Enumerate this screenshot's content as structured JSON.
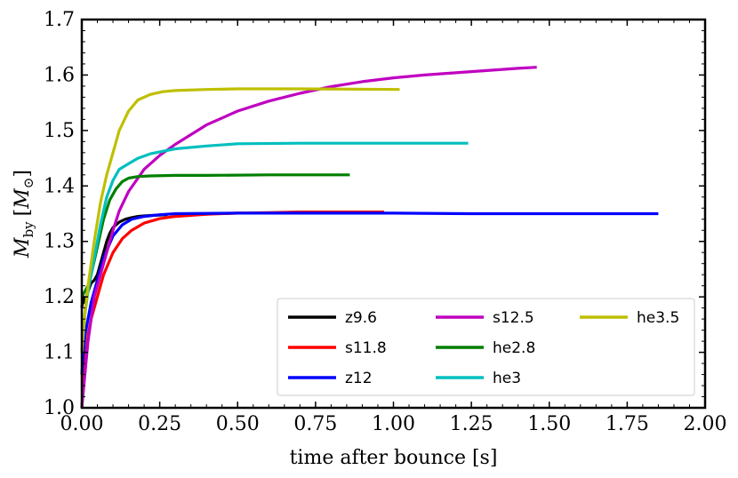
{
  "chart_data": {
    "type": "line",
    "title": "",
    "xlabel": "time after bounce [s]",
    "ylabel_main": "M",
    "ylabel_sub": "by",
    "ylabel_unit_open": "[",
    "ylabel_unit_main": "M",
    "ylabel_unit_sym": "⊙",
    "ylabel_unit_close": "]",
    "xlim": [
      0.0,
      2.0
    ],
    "ylim": [
      1.0,
      1.7
    ],
    "xticks": [
      0.0,
      0.25,
      0.5,
      0.75,
      1.0,
      1.25,
      1.5,
      1.75,
      2.0
    ],
    "xtick_labels": [
      "0.00",
      "0.25",
      "0.50",
      "0.75",
      "1.00",
      "1.25",
      "1.50",
      "1.75",
      "2.00"
    ],
    "yticks": [
      1.0,
      1.1,
      1.2,
      1.3,
      1.4,
      1.5,
      1.6,
      1.7
    ],
    "ytick_labels": [
      "1.0",
      "1.1",
      "1.2",
      "1.3",
      "1.4",
      "1.5",
      "1.6",
      "1.7"
    ],
    "grid": false,
    "legend_position": "bottom-right",
    "legend_columns": 3,
    "series": [
      {
        "name": "z9.6",
        "color": "#000000",
        "x": [
          0.0,
          0.005,
          0.01,
          0.02,
          0.03,
          0.04,
          0.05,
          0.06,
          0.07,
          0.08,
          0.09,
          0.1,
          0.12,
          0.14,
          0.16,
          0.18,
          0.2,
          0.23,
          0.275
        ],
        "y": [
          1.18,
          1.2,
          1.19,
          1.21,
          1.225,
          1.23,
          1.24,
          1.26,
          1.28,
          1.3,
          1.315,
          1.325,
          1.335,
          1.34,
          1.343,
          1.345,
          1.346,
          1.347,
          1.348
        ]
      },
      {
        "name": "s11.8",
        "color": "#ff0000",
        "x": [
          0.0,
          0.01,
          0.02,
          0.03,
          0.05,
          0.07,
          0.1,
          0.13,
          0.16,
          0.2,
          0.25,
          0.3,
          0.4,
          0.5,
          0.6,
          0.7,
          0.8,
          0.9,
          0.97
        ],
        "y": [
          1.0,
          1.08,
          1.13,
          1.16,
          1.2,
          1.24,
          1.28,
          1.305,
          1.32,
          1.333,
          1.341,
          1.345,
          1.349,
          1.351,
          1.352,
          1.353,
          1.353,
          1.353,
          1.353
        ]
      },
      {
        "name": "z12",
        "color": "#0000ff",
        "x": [
          0.0,
          0.005,
          0.01,
          0.02,
          0.03,
          0.05,
          0.07,
          0.1,
          0.13,
          0.16,
          0.2,
          0.25,
          0.3,
          0.5,
          0.75,
          1.0,
          1.25,
          1.5,
          1.85
        ],
        "y": [
          1.06,
          1.1,
          1.13,
          1.16,
          1.19,
          1.23,
          1.27,
          1.31,
          1.33,
          1.34,
          1.345,
          1.348,
          1.35,
          1.351,
          1.351,
          1.351,
          1.35,
          1.35,
          1.35
        ]
      },
      {
        "name": "s12.5",
        "color": "#c000c0",
        "x": [
          0.0,
          0.01,
          0.02,
          0.04,
          0.06,
          0.08,
          0.1,
          0.12,
          0.15,
          0.2,
          0.25,
          0.3,
          0.4,
          0.5,
          0.6,
          0.7,
          0.8,
          0.9,
          1.0,
          1.1,
          1.2,
          1.3,
          1.4,
          1.46
        ],
        "y": [
          1.0,
          1.06,
          1.12,
          1.2,
          1.24,
          1.28,
          1.32,
          1.355,
          1.39,
          1.43,
          1.455,
          1.475,
          1.51,
          1.535,
          1.553,
          1.567,
          1.579,
          1.588,
          1.595,
          1.6,
          1.604,
          1.608,
          1.612,
          1.614
        ]
      },
      {
        "name": "he2.8",
        "color": "#007f00",
        "x": [
          0.0,
          0.01,
          0.02,
          0.03,
          0.05,
          0.07,
          0.09,
          0.11,
          0.13,
          0.15,
          0.18,
          0.22,
          0.3,
          0.4,
          0.6,
          0.86
        ],
        "y": [
          1.2,
          1.21,
          1.22,
          1.24,
          1.29,
          1.34,
          1.375,
          1.395,
          1.408,
          1.414,
          1.417,
          1.418,
          1.419,
          1.419,
          1.42,
          1.42
        ]
      },
      {
        "name": "he3",
        "color": "#00bfbf",
        "x": [
          0.0,
          0.01,
          0.02,
          0.04,
          0.06,
          0.08,
          0.1,
          0.12,
          0.15,
          0.18,
          0.22,
          0.3,
          0.4,
          0.5,
          0.7,
          1.0,
          1.24
        ],
        "y": [
          1.1,
          1.17,
          1.21,
          1.27,
          1.33,
          1.38,
          1.41,
          1.43,
          1.44,
          1.45,
          1.458,
          1.467,
          1.472,
          1.476,
          1.477,
          1.477,
          1.477
        ]
      },
      {
        "name": "he3.5",
        "color": "#bfbf00",
        "x": [
          0.0,
          0.01,
          0.02,
          0.04,
          0.06,
          0.08,
          0.1,
          0.12,
          0.15,
          0.18,
          0.22,
          0.26,
          0.3,
          0.4,
          0.5,
          0.7,
          1.02
        ],
        "y": [
          1.1,
          1.17,
          1.22,
          1.3,
          1.37,
          1.42,
          1.46,
          1.5,
          1.535,
          1.555,
          1.565,
          1.57,
          1.572,
          1.574,
          1.575,
          1.575,
          1.574
        ]
      }
    ]
  }
}
